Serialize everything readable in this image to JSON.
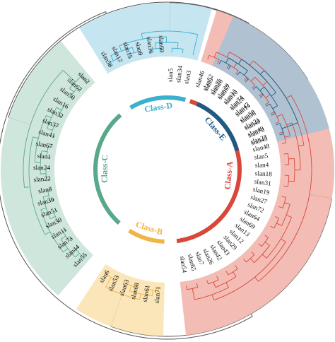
{
  "tree": {
    "leaf_start_angle": -70,
    "leaf_step": 5.2,
    "classes": [
      {
        "name": "Class-A",
        "label": "Class-A",
        "fill": "#f2b6ae",
        "line": "#d9463a",
        "bar": "#d9463a",
        "leaves": [
          "slan46",
          "slan52",
          "slan25",
          "slan20",
          "slan33",
          "slan74",
          "slan47",
          "slan59",
          "slan21",
          "slan49",
          "slan23",
          "slan48",
          "slan5",
          "slan4",
          "slan18",
          "slan31",
          "slan19",
          "slan27",
          "slan72",
          "slan64",
          "slan69",
          "slan13",
          "slan12",
          "slan29",
          "slan43",
          "slan42",
          "slan26",
          "slan7",
          "slan65",
          "slan54"
        ]
      },
      {
        "name": "Class-B",
        "label": "Class-B",
        "fill": "#fbe3b2",
        "line": "#f0b545",
        "bar": "#f0b545",
        "leaves": [
          "slan71",
          "slan61",
          "slan68",
          "slan63",
          "slan53",
          "slan6"
        ]
      },
      {
        "name": "Class-C",
        "label": "Class-C",
        "fill": "#c9e3d7",
        "line": "#5aa88a",
        "bar": "#5aa88a",
        "leaves": [
          "slan55",
          "slan44",
          "slan73",
          "slan11",
          "slan30",
          "slan51",
          "slan39",
          "slan8",
          "slan22",
          "slan24",
          "slan1",
          "slan67",
          "slan41",
          "slan37",
          "slan32",
          "slan16",
          "slan50",
          "slan62",
          "slan2"
        ]
      },
      {
        "name": "Class-D",
        "label": "Class-D",
        "fill": "#bfe2ef",
        "line": "#3ab0cf",
        "bar": "#3ab0cf",
        "leaves": [
          "slan58",
          "slan17",
          "slan15",
          "slan9",
          "slan36",
          "slan60",
          "slan5",
          "slan34",
          "slan3"
        ]
      },
      {
        "name": "Class-E",
        "label": "Class-E",
        "fill": "#a9c2d4",
        "line": "#1d5a85",
        "bar": "#1d5a85",
        "leaves": [
          "slan9",
          "slan26",
          "slan57",
          "slan10",
          "slan28",
          "slan14",
          "slan56",
          "slan40",
          "slan70",
          "slan45"
        ]
      }
    ],
    "root_line_color": "#555555"
  }
}
